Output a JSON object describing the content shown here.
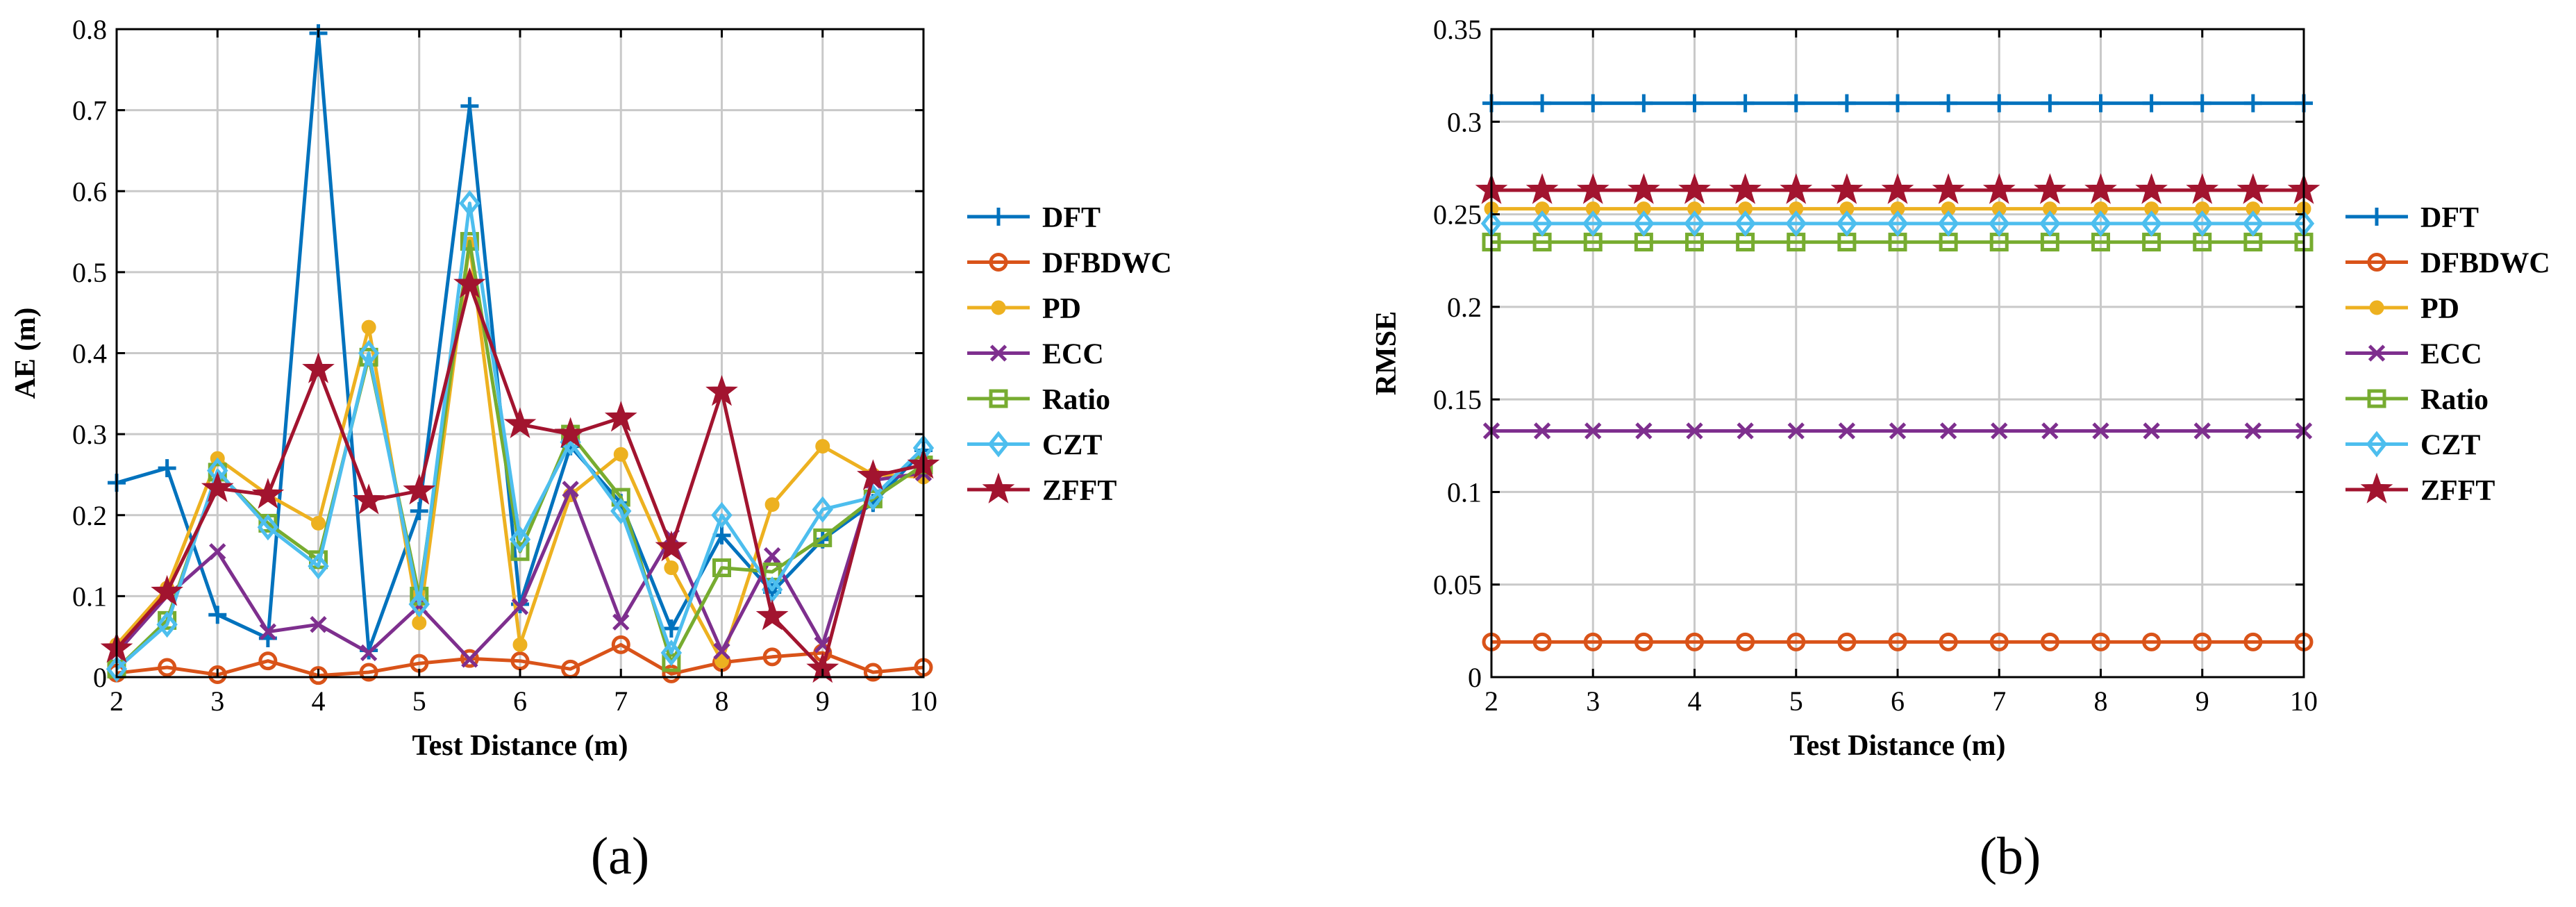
{
  "chart_data": [
    {
      "type": "line",
      "panel_label": "(a)",
      "xlabel": "Test Distance (m)",
      "ylabel": "AE (m)",
      "xlim": [
        2,
        10
      ],
      "ylim": [
        0,
        0.8
      ],
      "xticks": [
        2,
        3,
        4,
        5,
        6,
        7,
        8,
        9,
        10
      ],
      "yticks": [
        0,
        0.1,
        0.2,
        0.3,
        0.4,
        0.5,
        0.6,
        0.7,
        0.8
      ],
      "grid": true,
      "legend_position": "right",
      "x": [
        2,
        2.5,
        3,
        3.5,
        4,
        4.5,
        5,
        5.5,
        6,
        6.5,
        7,
        7.5,
        8,
        8.5,
        9,
        9.5,
        10
      ],
      "series": [
        {
          "name": "DFT",
          "color": "#0072BD",
          "marker": "plus",
          "values": [
            0.24,
            0.258,
            0.077,
            0.048,
            0.795,
            0.033,
            0.205,
            0.705,
            0.09,
            0.285,
            0.215,
            0.06,
            0.175,
            0.105,
            0.17,
            0.215,
            0.28
          ]
        },
        {
          "name": "DFBDWC",
          "color": "#D95319",
          "marker": "circle",
          "values": [
            0.005,
            0.012,
            0.003,
            0.02,
            0.002,
            0.006,
            0.017,
            0.023,
            0.02,
            0.01,
            0.04,
            0.004,
            0.018,
            0.025,
            0.03,
            0.006,
            0.012
          ]
        },
        {
          "name": "PD",
          "color": "#EDB120",
          "marker": "dot",
          "values": [
            0.04,
            0.11,
            0.27,
            0.225,
            0.19,
            0.432,
            0.067,
            0.535,
            0.04,
            0.225,
            0.275,
            0.135,
            0.02,
            0.213,
            0.285,
            0.25,
            0.247
          ]
        },
        {
          "name": "ECC",
          "color": "#7E2F8E",
          "marker": "x",
          "values": [
            0.03,
            0.1,
            0.155,
            0.056,
            0.065,
            0.03,
            0.088,
            0.022,
            0.087,
            0.232,
            0.068,
            0.173,
            0.032,
            0.15,
            0.04,
            0.243,
            0.252
          ]
        },
        {
          "name": "Ratio",
          "color": "#77AC30",
          "marker": "square",
          "values": [
            0.01,
            0.07,
            0.253,
            0.19,
            0.145,
            0.395,
            0.1,
            0.538,
            0.155,
            0.3,
            0.222,
            0.018,
            0.135,
            0.13,
            0.172,
            0.22,
            0.262
          ]
        },
        {
          "name": "CZT",
          "color": "#4DBEEE",
          "marker": "diamond",
          "values": [
            0.01,
            0.065,
            0.255,
            0.185,
            0.137,
            0.4,
            0.09,
            0.585,
            0.17,
            0.29,
            0.205,
            0.03,
            0.2,
            0.108,
            0.207,
            0.222,
            0.283
          ]
        },
        {
          "name": "ZFFT",
          "color": "#A2142F",
          "marker": "star",
          "values": [
            0.035,
            0.105,
            0.233,
            0.225,
            0.38,
            0.218,
            0.23,
            0.485,
            0.312,
            0.3,
            0.32,
            0.16,
            0.352,
            0.075,
            0.01,
            0.248,
            0.262
          ]
        }
      ]
    },
    {
      "type": "line",
      "panel_label": "(b)",
      "xlabel": "Test Distance (m)",
      "ylabel": "RMSE",
      "xlim": [
        2,
        10
      ],
      "ylim": [
        0,
        0.35
      ],
      "xticks": [
        2,
        3,
        4,
        5,
        6,
        7,
        8,
        9,
        10
      ],
      "yticks": [
        0,
        0.05,
        0.1,
        0.15,
        0.2,
        0.25,
        0.3,
        0.35
      ],
      "grid": true,
      "legend_position": "right",
      "x": [
        2,
        2.5,
        3,
        3.5,
        4,
        4.5,
        5,
        5.5,
        6,
        6.5,
        7,
        7.5,
        8,
        8.5,
        9,
        9.5,
        10
      ],
      "series": [
        {
          "name": "DFT",
          "color": "#0072BD",
          "marker": "plus",
          "constant": 0.31
        },
        {
          "name": "DFBDWC",
          "color": "#D95319",
          "marker": "circle",
          "constant": 0.019
        },
        {
          "name": "PD",
          "color": "#EDB120",
          "marker": "dot",
          "constant": 0.253
        },
        {
          "name": "ECC",
          "color": "#7E2F8E",
          "marker": "x",
          "constant": 0.133
        },
        {
          "name": "Ratio",
          "color": "#77AC30",
          "marker": "square",
          "constant": 0.235
        },
        {
          "name": "CZT",
          "color": "#4DBEEE",
          "marker": "diamond",
          "constant": 0.245
        },
        {
          "name": "ZFFT",
          "color": "#A2142F",
          "marker": "star",
          "constant": 0.263
        }
      ]
    }
  ]
}
